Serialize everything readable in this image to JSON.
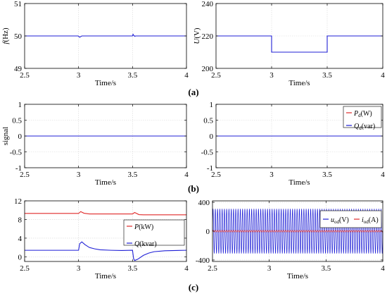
{
  "colors": {
    "blue": "#1f1fd6",
    "red": "#e02a2a",
    "grid": "#d7d7d7"
  },
  "captions": [
    "(a)",
    "(b)",
    "(c)"
  ],
  "chart_data": [
    {
      "id": "f",
      "type": "line",
      "ylabel": {
        "text": "(Hz)",
        "italic": "f"
      },
      "xlabel": "Time/s",
      "xlim": [
        2.5,
        4.0
      ],
      "ylim": [
        49,
        51
      ],
      "xticks": [
        2.5,
        3,
        3.5,
        4
      ],
      "yticks": [
        49,
        50,
        51
      ],
      "xtick_labels": [
        "2.5",
        "3",
        "3.5",
        "4"
      ],
      "ytick_labels": [
        "49",
        "50",
        "51"
      ],
      "series": [
        {
          "color": "#1f1fd6",
          "x": [
            2.5,
            2.995,
            3.0,
            3.01,
            3.02,
            3.03,
            3.5,
            3.505,
            3.51,
            3.52,
            3.53,
            4.0
          ],
          "y": [
            50,
            50,
            49.99,
            49.96,
            49.98,
            50,
            50,
            50.05,
            50.02,
            49.99,
            50,
            50
          ]
        }
      ],
      "legend": null
    },
    {
      "id": "U",
      "type": "line",
      "ylabel": {
        "text": "(V)",
        "italic": "U"
      },
      "xlabel": "Time/s",
      "xlim": [
        2.5,
        4.0
      ],
      "ylim": [
        200,
        240
      ],
      "xticks": [
        2.5,
        3,
        3.5,
        4
      ],
      "yticks": [
        200,
        220,
        240
      ],
      "xtick_labels": [
        "2.5",
        "3",
        "3.5",
        "4"
      ],
      "ytick_labels": [
        "200",
        "220",
        "240"
      ],
      "series": [
        {
          "color": "#1f1fd6",
          "x": [
            2.5,
            3.0,
            3.0,
            3.5,
            3.5,
            4.0
          ],
          "y": [
            220,
            220,
            210,
            210,
            220,
            220
          ]
        }
      ],
      "legend": null
    },
    {
      "id": "signal",
      "type": "line",
      "ylabel": {
        "text": "signal",
        "italic": ""
      },
      "xlabel": "Time/s",
      "xlim": [
        2.5,
        4.0
      ],
      "ylim": [
        -1,
        1
      ],
      "xticks": [
        2.5,
        3,
        3.5,
        4
      ],
      "yticks": [
        -1,
        -0.5,
        0,
        0.5,
        1
      ],
      "xtick_labels": [
        "2.5",
        "3",
        "3.5",
        "4"
      ],
      "ytick_labels": [
        "-1",
        "-0.5",
        "0",
        "0.5",
        "1"
      ],
      "series": [
        {
          "color": "#1f1fd6",
          "x": [
            2.5,
            4.0
          ],
          "y": [
            0,
            0
          ]
        }
      ],
      "legend": null
    },
    {
      "id": "PdQd",
      "type": "line",
      "ylabel": {
        "text": "",
        "italic": ""
      },
      "xlabel": "Time/s",
      "xlim": [
        2.5,
        4.0
      ],
      "ylim": [
        -1,
        1
      ],
      "xticks": [
        2.5,
        3,
        3.5,
        4
      ],
      "yticks": [
        -1,
        -0.5,
        0,
        0.5,
        1
      ],
      "xtick_labels": [
        "2.5",
        "3",
        "3.5",
        "4"
      ],
      "ytick_labels": [
        "-1",
        "-0.5",
        "0",
        "0.5",
        "1"
      ],
      "series": [
        {
          "color": "#e02a2a",
          "x": [
            2.5,
            4.0
          ],
          "y": [
            0,
            0
          ]
        },
        {
          "color": "#1f1fd6",
          "x": [
            2.5,
            4.0
          ],
          "y": [
            0,
            0
          ]
        }
      ],
      "legend": [
        {
          "italic": "P",
          "sub": "d",
          "rest": "(W)",
          "color": "#e02a2a"
        },
        {
          "italic": "Q",
          "sub": "d",
          "rest": "(var)",
          "color": "#1f1fd6"
        }
      ]
    },
    {
      "id": "PQ",
      "type": "line",
      "ylabel": {
        "text": "",
        "italic": ""
      },
      "xlabel": "Time/s",
      "xlim": [
        2.5,
        4.0
      ],
      "ylim": [
        -1,
        12
      ],
      "xticks": [
        2.5,
        3,
        3.5,
        4
      ],
      "yticks": [
        0,
        4,
        8,
        12
      ],
      "xtick_labels": [
        "2.5",
        "3",
        "3.5",
        "4"
      ],
      "ytick_labels": [
        "0",
        "4",
        "8",
        "12"
      ],
      "series": [
        {
          "color": "#e02a2a",
          "x": [
            2.5,
            3.0,
            3.02,
            3.05,
            3.1,
            3.5,
            3.52,
            3.56,
            3.6,
            4.0
          ],
          "y": [
            9.3,
            9.3,
            9.7,
            9.35,
            9.2,
            9.2,
            9.5,
            9.05,
            9.0,
            9.0
          ]
        },
        {
          "color": "#1f1fd6",
          "x": [
            2.5,
            3.0,
            3.01,
            3.03,
            3.06,
            3.1,
            3.15,
            3.2,
            3.3,
            3.4,
            3.5,
            3.51,
            3.52,
            3.55,
            3.6,
            3.65,
            3.7,
            3.8,
            4.0
          ],
          "y": [
            1.4,
            1.4,
            2.8,
            3.2,
            2.6,
            2.0,
            1.7,
            1.5,
            1.4,
            1.35,
            1.4,
            -0.4,
            -0.8,
            -0.5,
            0.3,
            0.8,
            1.1,
            1.3,
            1.4
          ]
        }
      ],
      "legend": [
        {
          "italic": "P",
          "sub": "",
          "rest": "(kW)",
          "color": "#e02a2a"
        },
        {
          "italic": "Q",
          "sub": "",
          "rest": "(kvar)",
          "color": "#1f1fd6"
        }
      ]
    },
    {
      "id": "uio",
      "type": "line",
      "ylabel": {
        "text": "",
        "italic": ""
      },
      "xlabel": "Time/s",
      "xlim": [
        2.5,
        4.0
      ],
      "ylim": [
        -420,
        420
      ],
      "xticks": [
        2.5,
        3,
        3.5,
        4
      ],
      "yticks": [
        -400,
        0,
        400
      ],
      "xtick_labels": [
        "2.5",
        "3",
        "3.5",
        "4"
      ],
      "ytick_labels": [
        "-400",
        "0",
        "400"
      ],
      "series": [
        {
          "color": "#1f1fd6",
          "waveform": "sine",
          "amplitude": 310,
          "frequency_hz": 50,
          "x": [
            2.5,
            4.0
          ]
        },
        {
          "color": "#e02a2a",
          "waveform": "sine",
          "amplitude": 12,
          "frequency_hz": 50,
          "x": [
            2.5,
            4.0
          ]
        }
      ],
      "legend": [
        {
          "italic": "u",
          "sub": "od",
          "rest": "(V)",
          "color": "#1f1fd6"
        },
        {
          "italic": "i",
          "sub": "od",
          "rest": "(A)",
          "color": "#e02a2a"
        }
      ]
    }
  ]
}
